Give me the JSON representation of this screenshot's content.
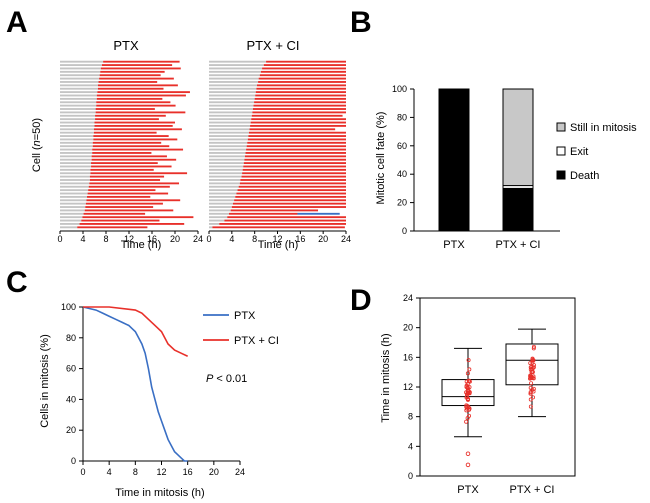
{
  "panels": {
    "A": {
      "label": "A",
      "ylabel_prefix": "Cell (",
      "ylabel_n": "n",
      "ylabel_suffix": "=50)",
      "xlabel": "Time (h)",
      "xticks": [
        "0",
        "4",
        "8",
        "12",
        "16",
        "20",
        "24"
      ],
      "xlim": [
        0,
        24
      ]
    },
    "B": {
      "label": "B"
    },
    "C": {
      "label": "C"
    },
    "D": {
      "label": "D"
    }
  },
  "colors": {
    "red": "#e8302a",
    "gray": "#c4c4c4",
    "blue": "#3a6fc4",
    "black": "#000000"
  },
  "chart_data": [
    {
      "type": "bar",
      "panel": "A",
      "title": "PTX",
      "subtype": "cell-fate timeline (horizontal stacked bars per cell)",
      "cell_count": 50,
      "segments_description": "gray = time before mitosis entry, red = time in mitosis until death",
      "mitosis_start_h": [
        7.5,
        7.3,
        7.1,
        7.0,
        6.9,
        6.8,
        6.7,
        6.6,
        6.6,
        6.5,
        6.4,
        6.4,
        6.3,
        6.3,
        6.2,
        6.2,
        6.1,
        6.1,
        6.0,
        6.0,
        5.9,
        5.9,
        5.8,
        5.8,
        5.7,
        5.7,
        5.6,
        5.6,
        5.5,
        5.5,
        5.4,
        5.4,
        5.3,
        5.3,
        5.2,
        5.2,
        5.1,
        5.0,
        4.9,
        4.8,
        4.7,
        4.6,
        4.5,
        4.4,
        4.3,
        4.1,
        3.9,
        3.7,
        3.4,
        3.0
      ],
      "end_h": [
        20.8,
        19.5,
        21.0,
        18.2,
        17.5,
        19.8,
        16.9,
        20.5,
        18.0,
        22.6,
        21.9,
        17.8,
        19.2,
        20.1,
        16.5,
        21.8,
        18.4,
        17.2,
        20.0,
        19.6,
        21.2,
        16.8,
        18.9,
        20.4,
        17.6,
        19.0,
        21.4,
        15.9,
        18.6,
        20.2,
        17.0,
        19.4,
        16.3,
        22.1,
        18.1,
        17.4,
        20.7,
        19.1,
        16.6,
        18.8,
        15.7,
        20.9,
        17.9,
        16.2,
        19.7,
        14.8,
        23.2,
        17.3,
        21.6,
        15.2
      ]
    },
    {
      "type": "bar",
      "panel": "A",
      "title": "PTX + CI",
      "subtype": "cell-fate timeline (horizontal stacked bars per cell)",
      "cell_count": 50,
      "segments_description": "gray = time before mitosis entry, red = time in mitosis (most reach 24 h), blue = exit",
      "mitosis_start_h": [
        10.0,
        9.6,
        9.3,
        9.1,
        8.9,
        8.7,
        8.6,
        8.4,
        8.3,
        8.2,
        8.1,
        8.0,
        7.9,
        7.8,
        7.7,
        7.6,
        7.5,
        7.4,
        7.3,
        7.2,
        7.1,
        7.0,
        6.9,
        6.8,
        6.7,
        6.6,
        6.5,
        6.4,
        6.3,
        6.2,
        6.1,
        6.0,
        5.9,
        5.8,
        5.7,
        5.5,
        5.4,
        5.2,
        5.0,
        4.8,
        4.6,
        4.4,
        4.2,
        4.0,
        3.8,
        3.5,
        3.2,
        2.7,
        1.8,
        0.6
      ],
      "end_h": [
        24,
        24,
        24,
        24,
        24,
        24,
        24,
        24,
        24,
        24,
        24,
        24,
        24,
        24,
        24,
        24,
        23.4,
        24,
        24,
        24,
        22.1,
        24,
        24,
        24,
        24,
        24,
        24,
        24,
        24,
        24,
        24,
        24,
        24,
        24,
        24,
        24,
        24,
        24,
        24,
        24,
        24,
        24,
        24,
        24,
        19.1,
        24,
        24,
        24,
        22.6,
        23.8
      ],
      "exit_segments": [
        {
          "cell_index": 45,
          "red_end_h": 15.5,
          "blue_end_h": 22.9
        },
        {
          "cell_index": 48,
          "red_end_h": 24.0,
          "blue_end_h": 24.0
        }
      ]
    },
    {
      "type": "bar",
      "panel": "B",
      "title": "",
      "categories": [
        "PTX",
        "PTX + CI"
      ],
      "ylabel": "Mitotic cell fate (%)",
      "ylim": [
        0,
        100
      ],
      "yticks": [
        0,
        20,
        40,
        60,
        80,
        100
      ],
      "stacked": true,
      "series": [
        {
          "name": "Death",
          "color": "#000000",
          "values": [
            100,
            30
          ]
        },
        {
          "name": "Exit",
          "color": "#ffffff",
          "values": [
            0,
            2
          ]
        },
        {
          "name": "Still in mitosis",
          "color": "#c8c8c8",
          "values": [
            0,
            68
          ]
        }
      ],
      "legend": "right",
      "legend_order": [
        "Still in mitosis",
        "Exit",
        "Death"
      ]
    },
    {
      "type": "line",
      "panel": "C",
      "title": "",
      "xlabel": "Time in mitosis (h)",
      "ylabel": "Cells in mitosis (%)",
      "xlim": [
        0,
        24
      ],
      "ylim": [
        0,
        100
      ],
      "xticks": [
        0,
        4,
        8,
        12,
        16,
        20,
        24
      ],
      "yticks": [
        0,
        20,
        40,
        60,
        80,
        100
      ],
      "annotation_prefix": "P",
      "annotation_suffix": " < 0.01",
      "legend": "top-right",
      "series": [
        {
          "name": "PTX",
          "color": "#3a6fc4",
          "x": [
            0,
            2,
            3,
            4,
            5,
            6,
            7,
            7.5,
            8,
            8.5,
            9,
            9.5,
            10,
            10.5,
            11,
            11.5,
            12,
            12.5,
            13,
            13.5,
            14,
            14.5,
            15,
            15.5,
            16
          ],
          "y": [
            100,
            98,
            96,
            94,
            92,
            90,
            88,
            86,
            84,
            80,
            76,
            70,
            60,
            48,
            40,
            32,
            26,
            20,
            14,
            10,
            6,
            4,
            2,
            0,
            0
          ]
        },
        {
          "name": "PTX + CI",
          "color": "#e8302a",
          "x": [
            0,
            4,
            8,
            9,
            10,
            11,
            12,
            13,
            14,
            15,
            16
          ],
          "y": [
            100,
            100,
            98,
            96,
            92,
            88,
            84,
            76,
            72,
            70,
            68
          ]
        }
      ]
    },
    {
      "type": "box",
      "panel": "D",
      "title": "",
      "ylabel": "Time in mitosis (h)",
      "ylim": [
        0,
        24
      ],
      "yticks": [
        0,
        4,
        8,
        12,
        16,
        20,
        24
      ],
      "categories": [
        "PTX",
        "PTX + CI"
      ],
      "boxes": [
        {
          "name": "PTX",
          "whisker_low": 5.3,
          "q1": 9.5,
          "median": 10.7,
          "q3": 13.0,
          "whisker_high": 17.2,
          "outliers": [
            3.0,
            1.5
          ]
        },
        {
          "name": "PTX + CI",
          "whisker_low": 8.0,
          "q1": 12.3,
          "median": 15.6,
          "q3": 17.8,
          "whisker_high": 19.8,
          "outliers": []
        }
      ],
      "points_color": "#e8302a"
    }
  ]
}
